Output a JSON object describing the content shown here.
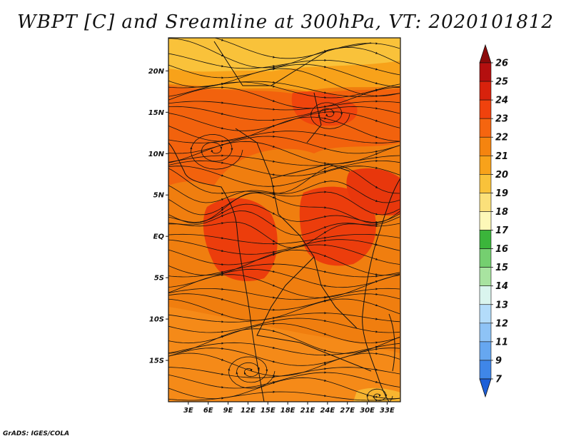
{
  "title": "WBPT [C] and Sreamline at 300hPa, VT: 2020101812",
  "credit": "GrADS: IGES/COLA",
  "map": {
    "lat_labels": [
      "20N",
      "15N",
      "10N",
      "5N",
      "EQ",
      "5S",
      "10S",
      "15S"
    ],
    "lon_labels": [
      "3E",
      "6E",
      "9E",
      "12E",
      "15E",
      "18E",
      "21E",
      "24E",
      "27E",
      "30E",
      "33E"
    ],
    "lat_values": [
      20,
      15,
      10,
      5,
      0,
      -5,
      -10,
      -15
    ],
    "lon_values": [
      3,
      6,
      9,
      12,
      15,
      18,
      21,
      24,
      27,
      30,
      33
    ],
    "lon_range": [
      0,
      35
    ],
    "lat_range": [
      -20,
      24
    ]
  },
  "colorbar": {
    "labels": [
      "26",
      "25",
      "24",
      "23",
      "22",
      "21",
      "20",
      "19",
      "18",
      "17",
      "16",
      "15",
      "14",
      "13",
      "12",
      "11",
      "9",
      "7"
    ],
    "colors": [
      "#8b0a0a",
      "#b40f0f",
      "#d8220c",
      "#f0420d",
      "#f5650f",
      "#f5840f",
      "#f8a21a",
      "#f9c23a",
      "#fbe07a",
      "#fdf8b8",
      "#3bb53b",
      "#75cf70",
      "#a8e3a0",
      "#daf5ee",
      "#b3dcfa",
      "#8ec3f6",
      "#66a7f0",
      "#3f86e8",
      "#1c5fd8"
    ]
  }
}
